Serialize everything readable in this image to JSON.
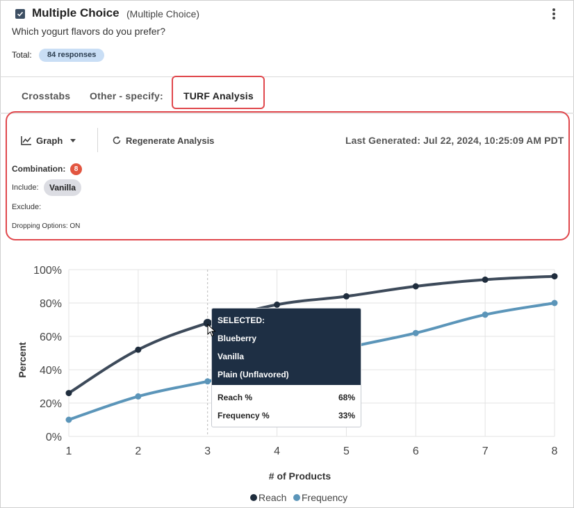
{
  "question": {
    "title": "Multiple Choice",
    "type": "(Multiple Choice)",
    "text": "Which yogurt flavors do you prefer?",
    "total_label": "Total:",
    "responses_badge": "84 responses"
  },
  "tabs": [
    {
      "label": "Crosstabs",
      "active": false
    },
    {
      "label": "Other - specify:",
      "active": false
    },
    {
      "label": "TURF Analysis",
      "active": true
    }
  ],
  "toolbar": {
    "view_label": "Graph",
    "regen_label": "Regenerate Analysis",
    "last_generated": "Last Generated: Jul 22, 2024, 10:25:09 AM PDT"
  },
  "settings": {
    "combination_label": "Combination:",
    "combination_value": "8",
    "include_label": "Include:",
    "include_chip": "Vanilla",
    "exclude_label": "Exclude:",
    "dropping_label": "Dropping Options: ON"
  },
  "colors": {
    "reach": "#3d4a5a",
    "frequency": "#5b95b9",
    "highlight_border": "#e0474c",
    "tooltip_header": "#1e2f44"
  },
  "chart_data": {
    "type": "line",
    "x": [
      1,
      2,
      3,
      4,
      5,
      6,
      7,
      8
    ],
    "xlabel": "# of Products",
    "ylabel": "Percent",
    "ylim": [
      0,
      100
    ],
    "yticks": [
      "0%",
      "20%",
      "40%",
      "60%",
      "80%",
      "100%"
    ],
    "grid": true,
    "legend_position": "bottom",
    "series": [
      {
        "name": "Reach",
        "values": [
          26,
          52,
          68,
          79,
          84,
          90,
          94,
          96
        ]
      },
      {
        "name": "Frequency",
        "values": [
          10,
          24,
          33,
          42,
          53,
          62,
          73,
          80
        ]
      }
    ],
    "selected_x": 3
  },
  "tooltip": {
    "heading": "SELECTED:",
    "items": [
      "Blueberry",
      "Vanilla",
      "Plain (Unflavored)"
    ],
    "rows": [
      {
        "label": "Reach %",
        "value": "68%"
      },
      {
        "label": "Frequency %",
        "value": "33%"
      }
    ]
  }
}
